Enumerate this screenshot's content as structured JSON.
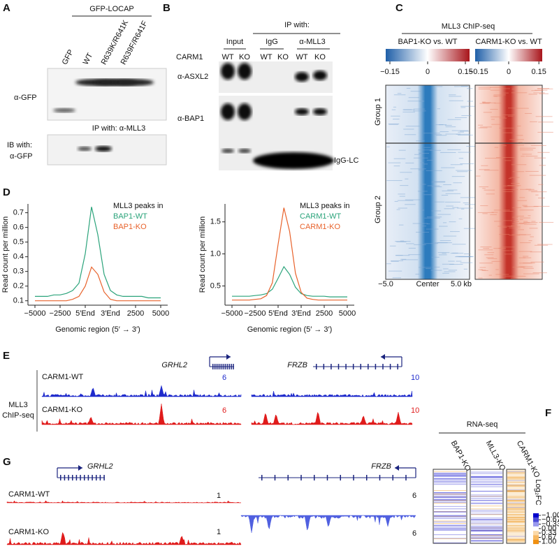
{
  "panels": {
    "A": {
      "label": "A",
      "header": "GFP-LOCAP",
      "lanes": [
        "GFP",
        "WT",
        "R639K/R641K",
        "R639F/R641F"
      ],
      "blot_label": "α-GFP",
      "ip_label": "IP with: α-MLL3",
      "ib_label": [
        "IB with:",
        "α-GFP"
      ]
    },
    "B": {
      "label": "B",
      "header": "IP with:",
      "groups": [
        "Input",
        "IgG",
        "α-MLL3"
      ],
      "row_label": "CARM1",
      "lanes": [
        "WT",
        "KO",
        "WT",
        "KO",
        "WT",
        "KO"
      ],
      "blots": [
        "α-ASXL2",
        "α-BAP1"
      ],
      "note": "IgG-LC"
    },
    "C": {
      "label": "C",
      "title": "MLL3 ChIP-seq",
      "maps": [
        "BAP1-KO vs. WT",
        "CARM1-KO vs. WT"
      ],
      "colorbar_ticks": [
        {
          "value": -0.15,
          "label": "−0.15"
        },
        0,
        0.15
      ],
      "groups": [
        "Group 1",
        "Group 2"
      ],
      "x_labels": [
        "−5.0",
        "Center",
        "5.0 kb"
      ]
    },
    "D": {
      "label": "D"
    },
    "E": {
      "label": "E",
      "genes": [
        "GRHL2",
        "FRZB"
      ],
      "side_label": [
        "MLL3",
        "ChIP-seq"
      ],
      "tracks": [
        {
          "name": "CARM1-WT",
          "scales": [
            "6",
            "10"
          ]
        },
        {
          "name": "CARM1-KO",
          "scales": [
            "6",
            "10"
          ]
        }
      ]
    },
    "F": {
      "label": "F",
      "title": "RNA-seq",
      "columns": [
        "BAP1-KO",
        "MLL3-KO",
        "CARM1-KO"
      ],
      "colorbar_title": "Log₂FC",
      "colorbar_ticks": [
        {
          "value": -1,
          "label": "−1.00"
        },
        {
          "value": -0.67,
          "label": "−0.67"
        },
        {
          "value": -0.33,
          "label": "−0.33"
        },
        {
          "value": 0,
          "label": "0.00"
        },
        {
          "value": 0.33,
          "label": "0.33"
        },
        {
          "value": 0.67,
          "label": "0.67"
        },
        {
          "value": 1,
          "label": "1.00"
        }
      ]
    },
    "G": {
      "label": "G",
      "genes": [
        "GRHL2",
        "FRZB"
      ],
      "tracks": [
        {
          "name": "CARM1-WT",
          "scales": [
            "1",
            "6"
          ]
        },
        {
          "name": "CARM1-KO",
          "scales": [
            "1",
            "6"
          ]
        }
      ]
    }
  },
  "chart_data": [
    {
      "type": "line",
      "ylabel": "Read count per million",
      "xlabel": "Genomic region (5′ → 3′)",
      "x_tick_labels": [
        "−5000",
        "−2500",
        "5′End",
        "3′End",
        "2500",
        "5000"
      ],
      "ylim": [
        0.07,
        0.76
      ],
      "yticks": [
        0.1,
        0.2,
        0.3,
        0.4,
        0.5,
        0.6,
        0.7
      ],
      "legend_title": "MLL3 peaks in",
      "series": [
        {
          "name": "BAP1-WT",
          "color": "#2aa37a",
          "values": [
            0.13,
            0.13,
            0.13,
            0.14,
            0.14,
            0.15,
            0.17,
            0.22,
            0.42,
            0.74,
            0.55,
            0.28,
            0.17,
            0.14,
            0.13,
            0.13,
            0.13,
            0.13,
            0.12,
            0.12,
            0.12
          ]
        },
        {
          "name": "BAP1-KO",
          "color": "#e8622b",
          "values": [
            0.1,
            0.1,
            0.1,
            0.1,
            0.1,
            0.1,
            0.11,
            0.13,
            0.2,
            0.33,
            0.28,
            0.16,
            0.11,
            0.1,
            0.1,
            0.1,
            0.1,
            0.1,
            0.1,
            0.1,
            0.1
          ]
        }
      ]
    },
    {
      "type": "line",
      "ylabel": "Read count per million",
      "xlabel": "Genomic region (5′ → 3′)",
      "x_tick_labels": [
        "−5000",
        "−2500",
        "5′End",
        "3′End",
        "2500",
        "5000"
      ],
      "ylim": [
        0.2,
        1.78
      ],
      "yticks": [
        0.5,
        {
          "value": 1,
          "label": "1.0"
        },
        1.5
      ],
      "legend_title": "MLL3 peaks in",
      "series": [
        {
          "name": "CARM1-WT",
          "color": "#2aa37a",
          "values": [
            0.34,
            0.34,
            0.34,
            0.34,
            0.35,
            0.36,
            0.38,
            0.45,
            0.62,
            0.8,
            0.68,
            0.48,
            0.38,
            0.35,
            0.34,
            0.34,
            0.34,
            0.33,
            0.33,
            0.33,
            0.33
          ]
        },
        {
          "name": "CARM1-KO",
          "color": "#e8622b",
          "values": [
            0.28,
            0.28,
            0.28,
            0.28,
            0.29,
            0.3,
            0.35,
            0.55,
            1.15,
            1.72,
            1.35,
            0.7,
            0.4,
            0.31,
            0.29,
            0.28,
            0.28,
            0.28,
            0.28,
            0.28,
            0.28
          ]
        }
      ]
    }
  ]
}
